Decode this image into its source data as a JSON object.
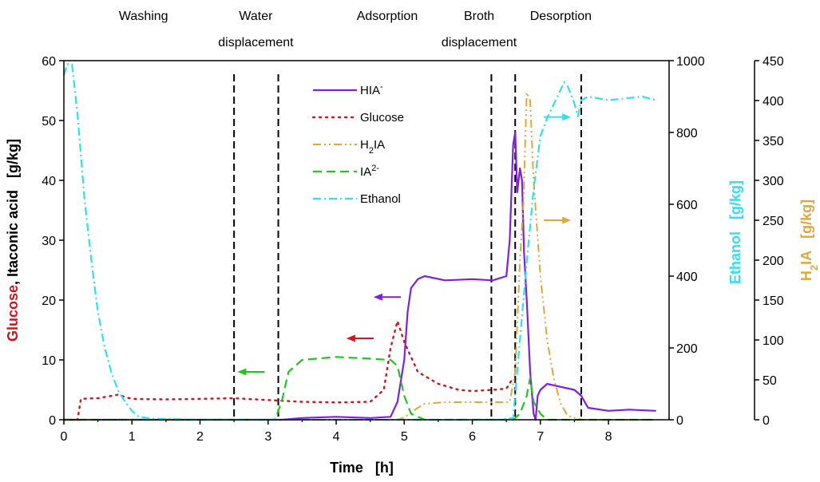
{
  "chart_data": {
    "type": "line",
    "title": "",
    "xlabel": {
      "name": "Time",
      "unit": "[h]"
    },
    "ylabel_left": {
      "part1": "Glucose",
      "sep": ", ",
      "part2": "Itaconic acid",
      "unit": "[g/kg]"
    },
    "ylabel_ethanol": {
      "name": "Ethanol",
      "unit": "[g/kg]"
    },
    "ylabel_h2ia": {
      "pre": "H",
      "sub": "2",
      "post": "IA",
      "unit": "[g/kg]"
    },
    "xlim": [
      0,
      8.75
    ],
    "ylim_left": [
      0,
      60
    ],
    "ylim_ethanol": [
      0,
      1000
    ],
    "ylim_h2ia": [
      0,
      450
    ],
    "x_ticks": [
      "0",
      "1",
      "2",
      "3",
      "4",
      "5",
      "6",
      "7",
      "8"
    ],
    "y_ticks_left": [
      "0",
      "10",
      "20",
      "30",
      "40",
      "50",
      "60"
    ],
    "y_ticks_ethanol": [
      "0",
      "200",
      "400",
      "600",
      "800",
      "1000"
    ],
    "y_ticks_h2ia": [
      "0",
      "50",
      "100",
      "150",
      "200",
      "250",
      "300",
      "350",
      "400",
      "450"
    ],
    "grid": false,
    "phase_boundaries_h": [
      2.5,
      3.15,
      6.28,
      6.63,
      7.6
    ],
    "phase_labels": [
      {
        "lines": [
          "Washing"
        ],
        "x": 1.17
      },
      {
        "lines": [
          "Water",
          "displacement"
        ],
        "x": 2.82
      },
      {
        "lines": [
          "Adsorption"
        ],
        "x": 4.75
      },
      {
        "lines": [
          "Broth",
          "displacement"
        ],
        "x": 6.1
      },
      {
        "lines": [
          "Desorption"
        ],
        "x": 7.3
      }
    ],
    "legend": {
      "placement": "top-center",
      "entries": [
        {
          "key": "hia",
          "main": "HIA",
          "sup": "-",
          "sub": ""
        },
        {
          "key": "glucose",
          "main": "Glucose",
          "sup": "",
          "sub": ""
        },
        {
          "key": "h2ia",
          "main": "H",
          "sub": "2",
          "post": "IA",
          "sup": ""
        },
        {
          "key": "ia2",
          "main": "IA",
          "sup": "2-",
          "sub": ""
        },
        {
          "key": "ethanol",
          "main": "Ethanol",
          "sup": "",
          "sub": ""
        }
      ]
    },
    "series": [
      {
        "key": "hia",
        "axis": "left",
        "color": "#7f1fe0",
        "dash": "",
        "width": 2.2,
        "x": [
          0,
          3.2,
          3.5,
          4.0,
          4.5,
          4.8,
          4.9,
          5.0,
          5.05,
          5.1,
          5.2,
          5.3,
          5.6,
          6.0,
          6.3,
          6.5,
          6.55,
          6.6,
          6.63,
          6.66,
          6.7,
          6.73,
          6.76,
          6.8,
          6.85,
          6.9,
          6.93,
          6.96,
          7.0,
          7.1,
          7.3,
          7.5,
          7.6,
          7.7,
          8.0,
          8.3,
          8.7
        ],
        "y": [
          0,
          0,
          0.3,
          0.5,
          0.3,
          0.5,
          3,
          10,
          18,
          22,
          23.5,
          24,
          23.3,
          23.5,
          23.3,
          24,
          30,
          46,
          48,
          38,
          42,
          40,
          28,
          20,
          8,
          1,
          0,
          4,
          5,
          6,
          5.5,
          5,
          4,
          2,
          1.5,
          1.7,
          1.5
        ]
      },
      {
        "key": "glucose",
        "axis": "left",
        "color": "#d0141d",
        "dash": "2 6",
        "width": 2.4,
        "x": [
          0,
          0.2,
          0.25,
          0.5,
          0.8,
          0.9,
          1.0,
          1.5,
          2.0,
          2.5,
          3.0,
          3.5,
          4.0,
          4.5,
          4.7,
          4.8,
          4.9,
          5.0,
          5.2,
          5.5,
          5.8,
          6.0,
          6.3,
          6.5,
          6.6
        ],
        "y": [
          0,
          0,
          3.5,
          3.6,
          4.2,
          3.8,
          3.5,
          3.4,
          3.5,
          3.6,
          3.3,
          3.0,
          2.9,
          3.0,
          5,
          12,
          16.5,
          13,
          8,
          6,
          5,
          4.8,
          5.0,
          5.2,
          7
        ]
      },
      {
        "key": "h2ia",
        "axis": "h2ia",
        "color": "#e0a838",
        "dash": "10 4 2 4 2 4",
        "width": 2.0,
        "x": [
          0,
          4.9,
          5.0,
          5.2,
          5.3,
          5.6,
          6.0,
          6.3,
          6.55,
          6.63,
          6.7,
          6.75,
          6.8,
          6.85,
          6.9,
          7.0,
          7.1,
          7.2,
          7.3,
          7.4,
          7.6,
          8.7
        ],
        "y": [
          0,
          0,
          3,
          15,
          20,
          22,
          22,
          22,
          22,
          60,
          200,
          270,
          410,
          400,
          300,
          180,
          100,
          50,
          20,
          5,
          0,
          0
        ]
      },
      {
        "key": "ia2",
        "axis": "left",
        "color": "#22c41e",
        "dash": "11 6",
        "width": 2.2,
        "x": [
          0,
          3.1,
          3.2,
          3.3,
          3.5,
          4.0,
          4.5,
          4.8,
          4.9,
          5.0,
          5.1,
          5.3,
          5.6,
          6.6,
          6.7,
          6.8,
          6.85,
          6.9,
          7.0,
          7.1,
          7.2,
          8.7
        ],
        "y": [
          0,
          0,
          3,
          8,
          10,
          10.5,
          10.2,
          10,
          9,
          4,
          1,
          0,
          0,
          0,
          1,
          4,
          7,
          3,
          1,
          0,
          0,
          0
        ]
      },
      {
        "key": "ethanol",
        "axis": "ethanol",
        "color": "#2fe0f0",
        "dash": "10 4 2 4",
        "width": 2.2,
        "x": [
          0,
          0.05,
          0.12,
          0.2,
          0.3,
          0.4,
          0.5,
          0.6,
          0.7,
          0.8,
          0.9,
          1.0,
          1.1,
          1.3,
          2.0,
          3.0,
          4.0,
          5.0,
          6.0,
          6.4,
          6.6,
          6.8,
          6.9,
          7.0,
          7.1,
          7.2,
          7.35,
          7.4,
          7.5,
          7.55,
          7.6,
          7.7,
          8.0,
          8.5,
          8.7
        ],
        "y": [
          960,
          990,
          990,
          850,
          620,
          450,
          300,
          200,
          130,
          80,
          50,
          25,
          8,
          3,
          0,
          0,
          0,
          0,
          0,
          0,
          5,
          440,
          640,
          790,
          840,
          880,
          940,
          930,
          880,
          845,
          890,
          900,
          890,
          900,
          890
        ]
      }
    ],
    "annotations": [
      {
        "type": "arrow",
        "axis": "left",
        "color": "#22c41e",
        "direction": "left",
        "x_from": 2.95,
        "x_to": 2.55,
        "y": 8
      },
      {
        "type": "arrow",
        "axis": "left",
        "color": "#d0141d",
        "direction": "left",
        "x_from": 4.55,
        "x_to": 4.15,
        "y": 13.6
      },
      {
        "type": "arrow",
        "axis": "left",
        "color": "#7f1fe0",
        "direction": "left",
        "x_from": 4.95,
        "x_to": 4.55,
        "y": 20.5
      },
      {
        "type": "arrow",
        "axis": "ethanol",
        "color": "#2fe0f0",
        "direction": "right",
        "x_from": 7.05,
        "x_to": 7.45,
        "y": 843
      },
      {
        "type": "arrow",
        "axis": "h2ia",
        "color": "#e0a838",
        "direction": "right",
        "x_from": 7.05,
        "x_to": 7.45,
        "y": 250
      }
    ],
    "colors": {
      "glucose_label": "#d0141d",
      "itaconic_label": "#000000",
      "ethanol_axis": "#2fe0f0",
      "h2ia_axis": "#e0a838"
    }
  }
}
